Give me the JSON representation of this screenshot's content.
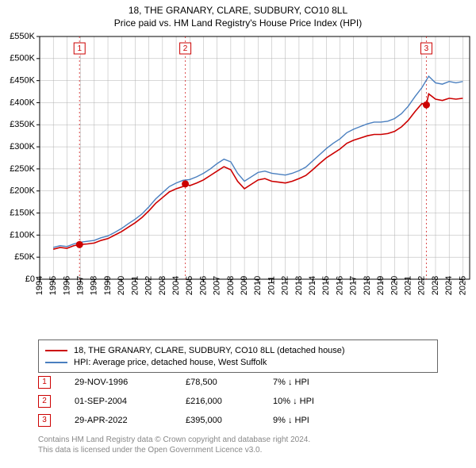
{
  "title_line1": "18, THE GRANARY, CLARE, SUDBURY, CO10 8LL",
  "title_line2": "Price paid vs. HM Land Registry's House Price Index (HPI)",
  "chart": {
    "type": "line",
    "background_color": "#ffffff",
    "grid_color": "#b0b0b0",
    "axis_color": "#000000",
    "tick_fontsize": 11,
    "title_fontsize": 12,
    "x_years": [
      1994,
      1995,
      1996,
      1997,
      1998,
      1999,
      2000,
      2001,
      2002,
      2003,
      2004,
      2005,
      2006,
      2007,
      2008,
      2009,
      2010,
      2011,
      2012,
      2013,
      2014,
      2015,
      2016,
      2017,
      2018,
      2019,
      2020,
      2021,
      2022,
      2023,
      2024,
      2025
    ],
    "y_ticks": [
      0,
      50000,
      100000,
      150000,
      200000,
      250000,
      300000,
      350000,
      400000,
      450000,
      500000,
      550000
    ],
    "y_tick_labels": [
      "£0",
      "£50K",
      "£100K",
      "£150K",
      "£200K",
      "£250K",
      "£300K",
      "£350K",
      "£400K",
      "£450K",
      "£500K",
      "£550K"
    ],
    "ylim": [
      0,
      550000
    ],
    "xlim": [
      1994,
      2025.5
    ],
    "series": [
      {
        "name": "property",
        "label": "18, THE GRANARY, CLARE, SUDBURY, CO10 8LL (detached house)",
        "color": "#cc0000",
        "line_width": 1.6,
        "points": [
          [
            1995.0,
            68000
          ],
          [
            1995.5,
            72000
          ],
          [
            1996.0,
            70000
          ],
          [
            1996.5,
            76000
          ],
          [
            1996.92,
            78500
          ],
          [
            1997.5,
            80000
          ],
          [
            1998.0,
            82000
          ],
          [
            1998.5,
            88000
          ],
          [
            1999.0,
            92000
          ],
          [
            1999.5,
            100000
          ],
          [
            2000.0,
            108000
          ],
          [
            2000.5,
            118000
          ],
          [
            2001.0,
            128000
          ],
          [
            2001.5,
            140000
          ],
          [
            2002.0,
            155000
          ],
          [
            2002.5,
            172000
          ],
          [
            2003.0,
            185000
          ],
          [
            2003.5,
            198000
          ],
          [
            2004.0,
            205000
          ],
          [
            2004.5,
            210000
          ],
          [
            2004.67,
            216000
          ],
          [
            2005.0,
            212000
          ],
          [
            2005.5,
            218000
          ],
          [
            2006.0,
            225000
          ],
          [
            2006.5,
            235000
          ],
          [
            2007.0,
            245000
          ],
          [
            2007.5,
            255000
          ],
          [
            2008.0,
            248000
          ],
          [
            2008.5,
            222000
          ],
          [
            2009.0,
            205000
          ],
          [
            2009.5,
            215000
          ],
          [
            2010.0,
            225000
          ],
          [
            2010.5,
            228000
          ],
          [
            2011.0,
            222000
          ],
          [
            2011.5,
            220000
          ],
          [
            2012.0,
            218000
          ],
          [
            2012.5,
            222000
          ],
          [
            2013.0,
            228000
          ],
          [
            2013.5,
            235000
          ],
          [
            2014.0,
            248000
          ],
          [
            2014.5,
            262000
          ],
          [
            2015.0,
            275000
          ],
          [
            2015.5,
            285000
          ],
          [
            2016.0,
            295000
          ],
          [
            2016.5,
            308000
          ],
          [
            2017.0,
            315000
          ],
          [
            2017.5,
            320000
          ],
          [
            2018.0,
            325000
          ],
          [
            2018.5,
            328000
          ],
          [
            2019.0,
            328000
          ],
          [
            2019.5,
            330000
          ],
          [
            2020.0,
            335000
          ],
          [
            2020.5,
            345000
          ],
          [
            2021.0,
            360000
          ],
          [
            2021.5,
            380000
          ],
          [
            2022.0,
            398000
          ],
          [
            2022.33,
            395000
          ],
          [
            2022.5,
            420000
          ],
          [
            2023.0,
            408000
          ],
          [
            2023.5,
            405000
          ],
          [
            2024.0,
            410000
          ],
          [
            2024.5,
            408000
          ],
          [
            2025.0,
            410000
          ]
        ]
      },
      {
        "name": "hpi",
        "label": "HPI: Average price, detached house, West Suffolk",
        "color": "#4a7fbf",
        "line_width": 1.4,
        "points": [
          [
            1995.0,
            72000
          ],
          [
            1995.5,
            76000
          ],
          [
            1996.0,
            74000
          ],
          [
            1996.5,
            80000
          ],
          [
            1997.0,
            84000
          ],
          [
            1997.5,
            86000
          ],
          [
            1998.0,
            88000
          ],
          [
            1998.5,
            94000
          ],
          [
            1999.0,
            98000
          ],
          [
            1999.5,
            106000
          ],
          [
            2000.0,
            115000
          ],
          [
            2000.5,
            126000
          ],
          [
            2001.0,
            136000
          ],
          [
            2001.5,
            148000
          ],
          [
            2002.0,
            164000
          ],
          [
            2002.5,
            182000
          ],
          [
            2003.0,
            196000
          ],
          [
            2003.5,
            210000
          ],
          [
            2004.0,
            218000
          ],
          [
            2004.5,
            224000
          ],
          [
            2005.0,
            226000
          ],
          [
            2005.5,
            232000
          ],
          [
            2006.0,
            240000
          ],
          [
            2006.5,
            250000
          ],
          [
            2007.0,
            262000
          ],
          [
            2007.5,
            272000
          ],
          [
            2008.0,
            266000
          ],
          [
            2008.5,
            240000
          ],
          [
            2009.0,
            222000
          ],
          [
            2009.5,
            232000
          ],
          [
            2010.0,
            242000
          ],
          [
            2010.5,
            245000
          ],
          [
            2011.0,
            240000
          ],
          [
            2011.5,
            238000
          ],
          [
            2012.0,
            236000
          ],
          [
            2012.5,
            240000
          ],
          [
            2013.0,
            246000
          ],
          [
            2013.5,
            254000
          ],
          [
            2014.0,
            268000
          ],
          [
            2014.5,
            282000
          ],
          [
            2015.0,
            296000
          ],
          [
            2015.5,
            308000
          ],
          [
            2016.0,
            318000
          ],
          [
            2016.5,
            332000
          ],
          [
            2017.0,
            340000
          ],
          [
            2017.5,
            346000
          ],
          [
            2018.0,
            352000
          ],
          [
            2018.5,
            356000
          ],
          [
            2019.0,
            356000
          ],
          [
            2019.5,
            358000
          ],
          [
            2020.0,
            364000
          ],
          [
            2020.5,
            375000
          ],
          [
            2021.0,
            392000
          ],
          [
            2021.5,
            414000
          ],
          [
            2022.0,
            434000
          ],
          [
            2022.5,
            460000
          ],
          [
            2023.0,
            445000
          ],
          [
            2023.5,
            442000
          ],
          [
            2024.0,
            448000
          ],
          [
            2024.5,
            445000
          ],
          [
            2025.0,
            448000
          ]
        ]
      }
    ],
    "sale_markers": [
      {
        "n": "1",
        "x": 1996.92,
        "y": 78500,
        "line_color": "#cc0000",
        "dot_color": "#cc0000"
      },
      {
        "n": "2",
        "x": 2004.67,
        "y": 216000,
        "line_color": "#cc0000",
        "dot_color": "#cc0000"
      },
      {
        "n": "3",
        "x": 2022.33,
        "y": 395000,
        "line_color": "#cc0000",
        "dot_color": "#cc0000"
      }
    ]
  },
  "legend": {
    "rows": [
      {
        "color": "#cc0000",
        "label": "18, THE GRANARY, CLARE, SUDBURY, CO10 8LL (detached house)"
      },
      {
        "color": "#4a7fbf",
        "label": "HPI: Average price, detached house, West Suffolk"
      }
    ]
  },
  "sales": [
    {
      "n": "1",
      "date": "29-NOV-1996",
      "price": "£78,500",
      "delta": "7% ↓ HPI"
    },
    {
      "n": "2",
      "date": "01-SEP-2004",
      "price": "£216,000",
      "delta": "10% ↓ HPI"
    },
    {
      "n": "3",
      "date": "29-APR-2022",
      "price": "£395,000",
      "delta": "9% ↓ HPI"
    }
  ],
  "footnote_line1": "Contains HM Land Registry data © Crown copyright and database right 2024.",
  "footnote_line2": "This data is licensed under the Open Government Licence v3.0."
}
